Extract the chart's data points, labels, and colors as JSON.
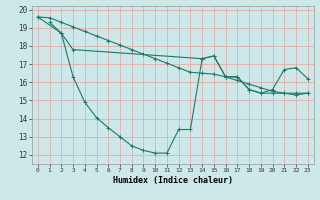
{
  "xlabel": "Humidex (Indice chaleur)",
  "bg_color": "#cce8e8",
  "grid_color": "#e8a0a0",
  "line_color": "#1a7a6a",
  "xlim": [
    -0.5,
    23.5
  ],
  "ylim": [
    11.5,
    20.2
  ],
  "xticks": [
    0,
    1,
    2,
    3,
    4,
    5,
    6,
    7,
    8,
    9,
    10,
    11,
    12,
    13,
    14,
    15,
    16,
    17,
    18,
    19,
    20,
    21,
    22,
    23
  ],
  "yticks": [
    12,
    13,
    14,
    15,
    16,
    17,
    18,
    19,
    20
  ],
  "line1_x": [
    0,
    1,
    2,
    3,
    4,
    5,
    6,
    7,
    8,
    9,
    10,
    11,
    12,
    13,
    14,
    15,
    16,
    17,
    18,
    19,
    20,
    21,
    22,
    23
  ],
  "line1_y": [
    19.6,
    19.55,
    19.3,
    19.05,
    18.8,
    18.55,
    18.3,
    18.05,
    17.8,
    17.55,
    17.3,
    17.05,
    16.8,
    16.55,
    16.5,
    16.45,
    16.3,
    16.1,
    15.9,
    15.7,
    15.5,
    15.4,
    15.3,
    15.4
  ],
  "line2_x": [
    0,
    2,
    3,
    14,
    15,
    16,
    17,
    18,
    19,
    20,
    21,
    22,
    23
  ],
  "line2_y": [
    19.6,
    18.7,
    17.8,
    17.3,
    17.45,
    16.3,
    16.3,
    15.6,
    15.4,
    15.6,
    16.7,
    16.8,
    16.2
  ],
  "line3_x": [
    1,
    2,
    3,
    4,
    5,
    6,
    7,
    8,
    9,
    10,
    11,
    12,
    13,
    14,
    15,
    16,
    17,
    18,
    19,
    20,
    21,
    22,
    23
  ],
  "line3_y": [
    19.3,
    18.7,
    16.3,
    14.9,
    14.05,
    13.5,
    13.0,
    12.5,
    12.25,
    12.1,
    12.1,
    13.4,
    13.4,
    17.3,
    17.45,
    16.3,
    16.3,
    15.6,
    15.4,
    15.4,
    15.4,
    15.4,
    15.4
  ]
}
